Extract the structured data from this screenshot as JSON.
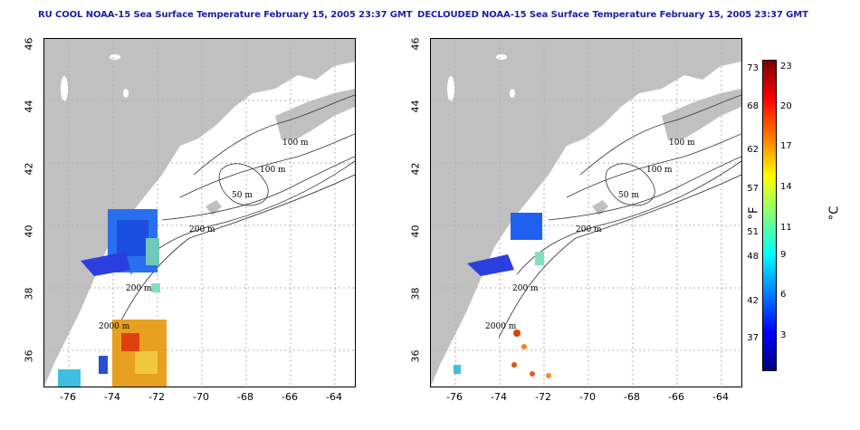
{
  "left_map": {
    "title": "RU COOL NOAA-15 Sea Surface Temperature February 15, 2005 23:37 GMT",
    "lat_ticks": [
      "46",
      "44",
      "42",
      "40",
      "38",
      "36"
    ],
    "lon_ticks": [
      "-76",
      "-74",
      "-72",
      "-70",
      "-68",
      "-66",
      "-64"
    ],
    "contour_labels": [
      "100 m",
      "100 m",
      "50 m",
      "200 m",
      "200 m",
      "2000 m"
    ]
  },
  "right_map": {
    "title": "DECLOUDED NOAA-15 Sea Surface Temperature February 15, 2005 23:37 GMT",
    "lat_ticks": [
      "46",
      "44",
      "42",
      "40",
      "38",
      "36"
    ],
    "lon_ticks": [
      "-76",
      "-74",
      "-72",
      "-70",
      "-68",
      "-66",
      "-64"
    ],
    "contour_labels": [
      "100 m",
      "100 m",
      "50 m",
      "200 m",
      "200 m",
      "2000 m"
    ]
  },
  "colorbar": {
    "f_ticks": [
      "73",
      "68",
      "62",
      "57",
      "51",
      "48",
      "42",
      "37"
    ],
    "c_ticks": [
      "23",
      "20",
      "17",
      "14",
      "11",
      "9",
      "6",
      "3"
    ],
    "f_unit": "°F",
    "c_unit": "°C",
    "colors": [
      "#00007f",
      "#0000ff",
      "#007fff",
      "#00ffff",
      "#7fff7f",
      "#ffff00",
      "#ff7f00",
      "#ff0000",
      "#7f0000"
    ]
  },
  "colors": {
    "land": "#c0c0c0",
    "title": "#1d1da8",
    "grid": "#b0b0b0",
    "contour": "#333333"
  }
}
